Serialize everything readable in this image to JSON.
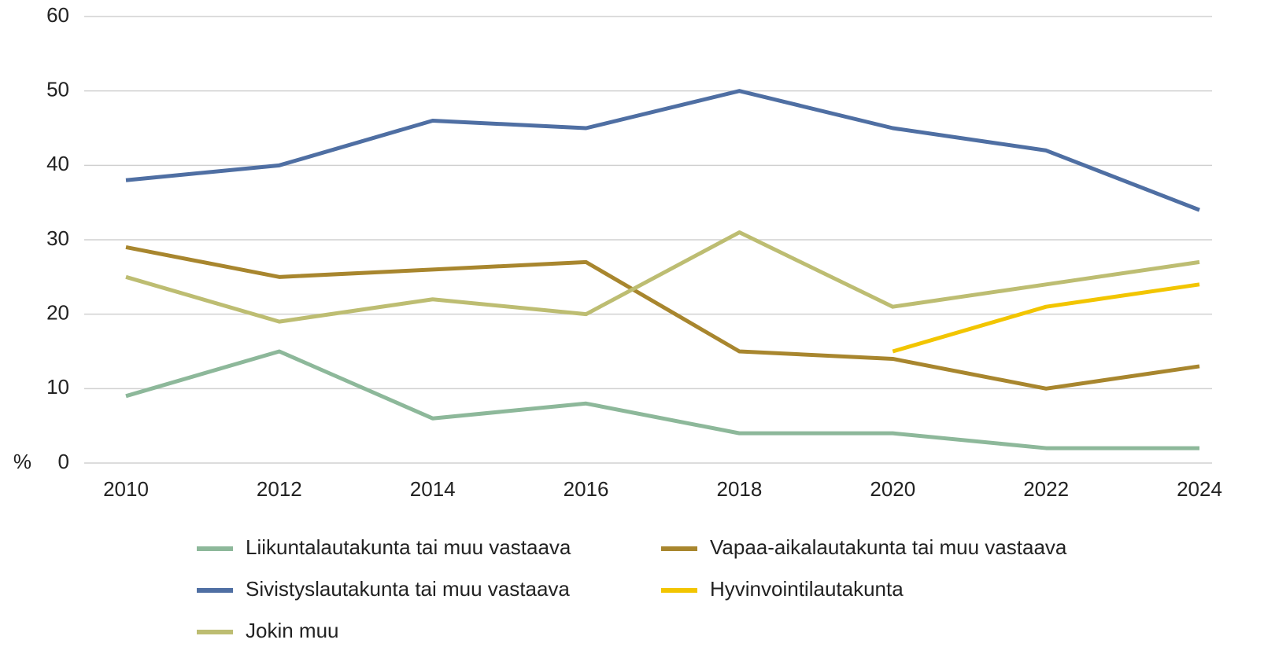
{
  "chart_data": {
    "type": "line",
    "y_label": "%",
    "x": [
      2010,
      2012,
      2014,
      2016,
      2018,
      2020,
      2022,
      2024
    ],
    "xlim": [
      2010,
      2024
    ],
    "xticks": [
      2010,
      2012,
      2014,
      2016,
      2018,
      2020,
      2022,
      2024
    ],
    "ylim": [
      0,
      60
    ],
    "yticks": [
      0,
      10,
      20,
      30,
      40,
      50,
      60
    ],
    "grid": true,
    "legend": "bottom",
    "series": [
      {
        "name": "Liikuntalautakunta tai muu vastaava",
        "color": "#8db89a",
        "values": [
          9,
          15,
          6,
          8,
          4,
          4,
          2,
          2
        ]
      },
      {
        "name": "Vapaa-aikalautakunta tai muu vastaava",
        "color": "#a8862e",
        "values": [
          29,
          25,
          26,
          27,
          15,
          14,
          10,
          13
        ]
      },
      {
        "name": "Sivistyslautakunta tai muu vastaava",
        "color": "#4f6fa3",
        "values": [
          38,
          40,
          46,
          45,
          50,
          45,
          42,
          34
        ]
      },
      {
        "name": "Hyvinvointilautakunta",
        "color": "#f2c500",
        "values": [
          null,
          null,
          null,
          null,
          null,
          15,
          21,
          24
        ]
      },
      {
        "name": "Jokin muu",
        "color": "#bdbd72",
        "values": [
          25,
          19,
          22,
          20,
          31,
          21,
          24,
          27
        ]
      }
    ]
  }
}
